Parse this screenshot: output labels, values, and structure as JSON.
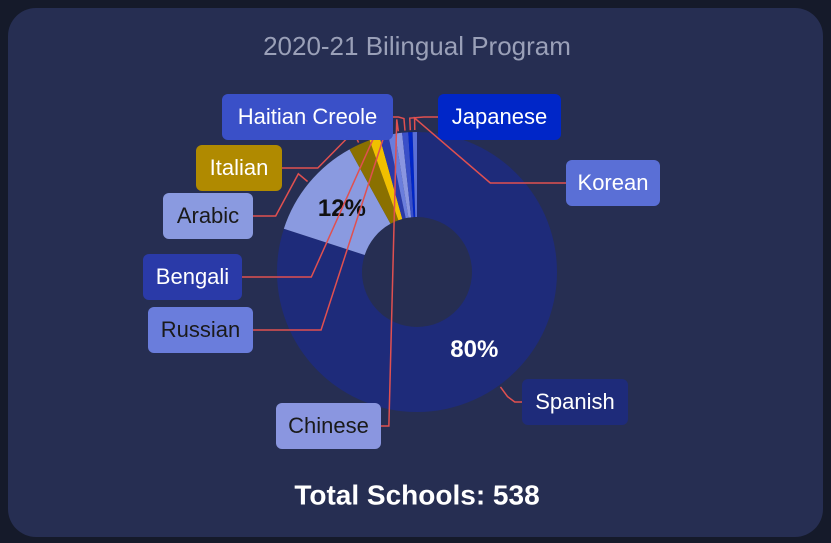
{
  "chart_data": {
    "type": "pie",
    "title": "2020-21 Bilingual Program",
    "total_label": "Total Schools: 538",
    "categories": [
      "Spanish",
      "Arabic",
      "Italian",
      null,
      "Bengali",
      "Russian",
      "Chinese",
      "Haitian Creole",
      "Japanese",
      "Korean"
    ],
    "values": [
      80,
      12,
      2.5,
      1.2,
      1,
      0.8,
      0.8,
      0.7,
      0.5,
      0.5
    ],
    "value_labels": [
      "80%",
      "12%",
      null,
      null,
      null,
      null,
      null,
      null,
      null,
      null
    ],
    "colors": [
      "#1e2b7a",
      "#8a9ae0",
      "#8a7000",
      "#f0c000",
      "#2a3aa8",
      "#6a7ddc",
      "#8a96e0",
      "#3a50c8",
      "#0026c8",
      "#5a6fd6"
    ],
    "donut": true
  }
}
